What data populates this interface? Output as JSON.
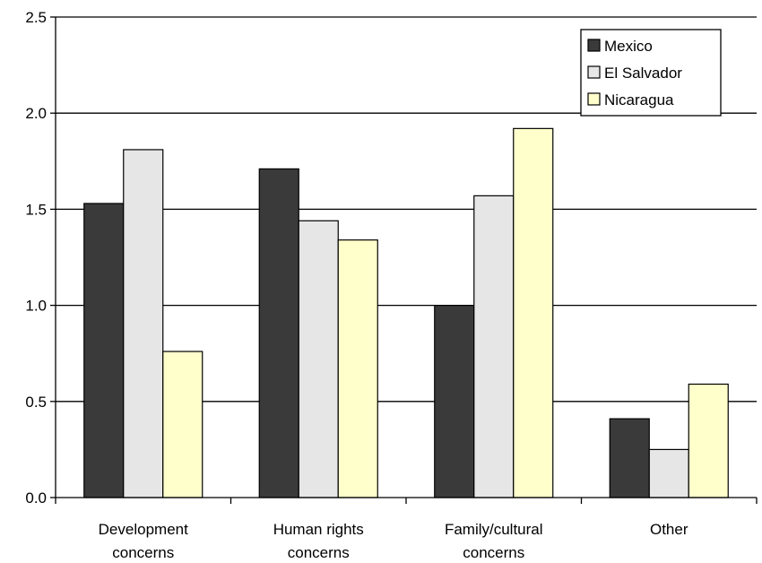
{
  "chart_data": {
    "type": "bar",
    "categories": [
      [
        "Development",
        "concerns"
      ],
      [
        "Human rights",
        "concerns"
      ],
      [
        "Family/cultural",
        "concerns"
      ],
      [
        "Other"
      ]
    ],
    "series": [
      {
        "name": "Mexico",
        "color": "#3a3a3a",
        "values": [
          1.53,
          1.71,
          1.0,
          0.41
        ]
      },
      {
        "name": "El Salvador",
        "color": "#e6e6e6",
        "values": [
          1.81,
          1.44,
          1.57,
          0.25
        ]
      },
      {
        "name": "Nicaragua",
        "color": "#ffffcc",
        "values": [
          0.76,
          1.34,
          1.92,
          0.59
        ]
      }
    ],
    "yticks": [
      "0.0",
      "0.5",
      "1.0",
      "1.5",
      "2.0",
      "2.5"
    ],
    "ylim": [
      0,
      2.5
    ],
    "grid": true,
    "legend_position": "top-right"
  }
}
